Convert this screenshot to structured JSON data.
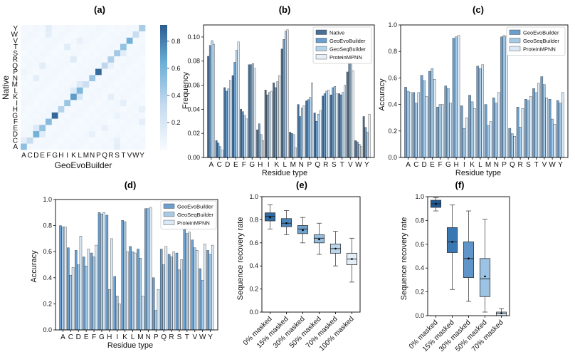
{
  "chart_data": [
    {
      "panel": "(a)",
      "type": "heatmap",
      "title": "(a)",
      "xlabel": "GeoEvoBuilder",
      "ylabel": "Native",
      "x_ticks": "ACDEFGHIKLMNPQRSTVWY",
      "y_ticks": "YWVTSRQPNMLKIHGFEDCA",
      "labels": [
        "A",
        "C",
        "D",
        "E",
        "F",
        "G",
        "H",
        "I",
        "K",
        "L",
        "M",
        "N",
        "P",
        "Q",
        "R",
        "S",
        "T",
        "V",
        "W",
        "Y"
      ],
      "diagonal": [
        0.52,
        0.3,
        0.62,
        0.5,
        0.55,
        0.88,
        0.38,
        0.48,
        0.7,
        0.58,
        0.28,
        0.47,
        0.87,
        0.35,
        0.4,
        0.45,
        0.5,
        0.62,
        0.3,
        0.42
      ],
      "off_diagonal": [
        [
          1,
          0,
          0.12
        ],
        [
          3,
          2,
          0.18
        ],
        [
          2,
          3,
          0.16
        ],
        [
          8,
          9,
          0.2
        ],
        [
          9,
          8,
          0.18
        ],
        [
          16,
          7,
          0.15
        ],
        [
          7,
          16,
          0.12
        ],
        [
          13,
          3,
          0.14
        ],
        [
          14,
          8,
          0.16
        ],
        [
          15,
          16,
          0.14
        ],
        [
          11,
          2,
          0.13
        ],
        [
          19,
          4,
          0.14
        ],
        [
          4,
          19,
          0.12
        ],
        [
          0,
          15,
          0.13
        ],
        [
          10,
          9,
          0.18
        ],
        [
          18,
          4,
          0.12
        ],
        [
          17,
          9,
          0.1
        ],
        [
          1,
          15,
          0.1
        ],
        [
          6,
          19,
          0.1
        ],
        [
          12,
          0,
          0.06
        ],
        [
          5,
          15,
          0.08
        ],
        [
          2,
          11,
          0.1
        ],
        [
          3,
          13,
          0.1
        ],
        [
          13,
          14,
          0.09
        ],
        [
          8,
          14,
          0.12
        ]
      ],
      "colorbar": {
        "ticks": [
          0.2,
          0.4,
          0.6,
          0.8
        ],
        "range": [
          0.0,
          0.92
        ]
      }
    },
    {
      "panel": "(b)",
      "type": "bar",
      "title": "(b)",
      "xlabel": "Residue type",
      "ylabel": "Frequency",
      "ylim": [
        0,
        0.11
      ],
      "yticks": [
        0.0,
        0.02,
        0.04,
        0.06,
        0.08,
        0.1
      ],
      "categories": [
        "A",
        "C",
        "D",
        "E",
        "F",
        "G",
        "H",
        "I",
        "K",
        "L",
        "M",
        "N",
        "P",
        "Q",
        "R",
        "S",
        "T",
        "V",
        "W",
        "Y"
      ],
      "series": [
        {
          "name": "Native",
          "values": [
            0.084,
            0.014,
            0.058,
            0.068,
            0.04,
            0.077,
            0.023,
            0.056,
            0.062,
            0.09,
            0.021,
            0.044,
            0.047,
            0.037,
            0.051,
            0.052,
            0.053,
            0.071,
            0.014,
            0.034
          ]
        },
        {
          "name": "GeoEvoBuilder",
          "values": [
            0.093,
            0.012,
            0.055,
            0.079,
            0.038,
            0.077,
            0.028,
            0.052,
            0.058,
            0.098,
            0.02,
            0.034,
            0.048,
            0.03,
            0.053,
            0.058,
            0.052,
            0.084,
            0.013,
            0.025
          ]
        },
        {
          "name": "GeoSeqBuilder",
          "values": [
            0.097,
            0.009,
            0.057,
            0.089,
            0.035,
            0.078,
            0.019,
            0.054,
            0.063,
            0.105,
            0.019,
            0.041,
            0.05,
            0.036,
            0.055,
            0.059,
            0.054,
            0.081,
            0.011,
            0.021
          ]
        },
        {
          "name": "ProteinMPNN",
          "values": [
            0.094,
            0.006,
            0.064,
            0.096,
            0.032,
            0.074,
            0.014,
            0.055,
            0.068,
            0.106,
            0.008,
            0.043,
            0.062,
            0.039,
            0.056,
            0.053,
            0.06,
            0.072,
            0.009,
            0.036
          ]
        }
      ]
    },
    {
      "panel": "(c)",
      "type": "bar",
      "title": "(c)",
      "xlabel": "Residue type",
      "ylabel": "Accuracy",
      "ylim": [
        0,
        1.0
      ],
      "yticks": [
        0.0,
        0.2,
        0.4,
        0.6,
        0.8,
        1.0
      ],
      "categories": [
        "A",
        "C",
        "D",
        "E",
        "F",
        "G",
        "H",
        "I",
        "K",
        "L",
        "M",
        "N",
        "P",
        "Q",
        "R",
        "S",
        "T",
        "V",
        "W",
        "Y"
      ],
      "series": [
        {
          "name": "GeoEvoBuilder",
          "values": [
            0.53,
            0.49,
            0.62,
            0.65,
            0.38,
            0.54,
            0.9,
            0.39,
            0.47,
            0.69,
            0.4,
            0.45,
            0.91,
            0.22,
            0.38,
            0.44,
            0.52,
            0.61,
            0.44,
            0.43
          ]
        },
        {
          "name": "GeoSeqBuilder",
          "values": [
            0.5,
            0.41,
            0.58,
            0.67,
            0.4,
            0.52,
            0.91,
            0.22,
            0.42,
            0.67,
            0.24,
            0.41,
            0.92,
            0.18,
            0.23,
            0.43,
            0.49,
            0.55,
            0.29,
            0.41
          ]
        },
        {
          "name": "ProteinMPNN",
          "values": [
            0.49,
            0.49,
            0.46,
            0.59,
            0.4,
            0.41,
            0.92,
            0.3,
            0.37,
            0.7,
            0.27,
            0.49,
            0.91,
            0.16,
            0.37,
            0.46,
            0.56,
            0.45,
            0.25,
            0.49
          ]
        }
      ]
    },
    {
      "panel": "(d)",
      "type": "bar",
      "title": "(d)",
      "xlabel": "Residue type",
      "ylabel": "Accuracy",
      "ylim": [
        0,
        1.0
      ],
      "yticks": [
        0.0,
        0.2,
        0.4,
        0.6,
        0.8,
        1.0
      ],
      "categories": [
        "A",
        "C",
        "D",
        "E",
        "F",
        "G",
        "H",
        "I",
        "K",
        "L",
        "M",
        "N",
        "P",
        "Q",
        "R",
        "S",
        "T",
        "V",
        "W",
        "Y"
      ],
      "series": [
        {
          "name": "GeoEvoBuilder",
          "values": [
            0.8,
            0.63,
            0.61,
            0.56,
            0.59,
            0.9,
            0.88,
            0.41,
            0.84,
            0.64,
            0.62,
            0.93,
            0.4,
            0.62,
            0.58,
            0.59,
            0.77,
            0.69,
            0.47,
            0.61
          ]
        },
        {
          "name": "GeoSeqBuilder",
          "values": [
            0.79,
            0.42,
            0.5,
            0.49,
            0.56,
            0.89,
            0.31,
            0.26,
            0.83,
            0.6,
            0.55,
            0.93,
            0.15,
            0.5,
            0.56,
            0.46,
            0.74,
            0.63,
            0.38,
            0.58
          ]
        },
        {
          "name": "ProteinMPNN",
          "values": [
            0.79,
            0.48,
            0.72,
            0.62,
            0.65,
            0.9,
            0.7,
            0.2,
            0.6,
            0.59,
            0.26,
            0.94,
            0.31,
            0.64,
            0.6,
            0.54,
            0.75,
            0.61,
            0.66,
            0.65
          ]
        }
      ]
    },
    {
      "panel": "(e)",
      "type": "box",
      "title": "(e)",
      "ylabel": "Sequence recovery rate",
      "ylim": [
        0,
        1.0
      ],
      "yticks": [
        0.0,
        0.2,
        0.4,
        0.6,
        0.8,
        1.0
      ],
      "categories": [
        "0% masked",
        "15% masked",
        "30% masked",
        "50% masked",
        "70% masked",
        "100% masked"
      ],
      "boxes": [
        {
          "min": 0.72,
          "q1": 0.79,
          "median": 0.83,
          "q3": 0.86,
          "max": 0.93,
          "mean": 0.82
        },
        {
          "min": 0.67,
          "q1": 0.74,
          "median": 0.77,
          "q3": 0.81,
          "max": 0.88,
          "mean": 0.77
        },
        {
          "min": 0.6,
          "q1": 0.68,
          "median": 0.72,
          "q3": 0.75,
          "max": 0.82,
          "mean": 0.71
        },
        {
          "min": 0.5,
          "q1": 0.6,
          "median": 0.64,
          "q3": 0.67,
          "max": 0.77,
          "mean": 0.63
        },
        {
          "min": 0.4,
          "q1": 0.51,
          "median": 0.55,
          "q3": 0.59,
          "max": 0.7,
          "mean": 0.55
        },
        {
          "min": 0.26,
          "q1": 0.41,
          "median": 0.46,
          "q3": 0.51,
          "max": 0.64,
          "mean": 0.46
        }
      ]
    },
    {
      "panel": "(f)",
      "type": "box",
      "title": "(f)",
      "ylabel": "Sequence recovery rate",
      "ylim": [
        0,
        1.0
      ],
      "yticks": [
        0.0,
        0.2,
        0.4,
        0.6,
        0.8,
        1.0
      ],
      "categories": [
        "0% masked",
        "15% masked",
        "30% masked",
        "50% masked",
        "70% masked"
      ],
      "boxes": [
        {
          "min": 0.88,
          "q1": 0.91,
          "median": 0.94,
          "q3": 0.97,
          "max": 0.99,
          "mean": 0.94
        },
        {
          "min": 0.22,
          "q1": 0.53,
          "median": 0.62,
          "q3": 0.74,
          "max": 0.93,
          "mean": 0.62
        },
        {
          "min": 0.12,
          "q1": 0.32,
          "median": 0.48,
          "q3": 0.62,
          "max": 0.88,
          "mean": 0.48
        },
        {
          "min": 0.03,
          "q1": 0.16,
          "median": 0.31,
          "q3": 0.48,
          "max": 0.81,
          "mean": 0.33
        },
        {
          "min": 0.0,
          "q1": 0.0,
          "median": 0.02,
          "q3": 0.03,
          "max": 0.06,
          "mean": 0.02
        }
      ]
    }
  ],
  "palette": {
    "native": "#4a6f97",
    "seq4_geoevo": "#6c9fcd",
    "seq4_geoseq": "#b3d3eb",
    "seq4_mpnn": "#e6f0f9",
    "seq3_geoevo": "#6c9fcd",
    "seq3_geoseq": "#a7cbe7",
    "seq3_mpnn": "#dbe9f6",
    "box_e": [
      "#2f6aa3",
      "#4b87bd",
      "#6ea3cf",
      "#95bee0",
      "#bcd6ec",
      "#e3eef8"
    ],
    "box_f": [
      "#1f5a96",
      "#3a78b4",
      "#5f95c8",
      "#9cc3e4",
      "#d9e8f5"
    ]
  }
}
